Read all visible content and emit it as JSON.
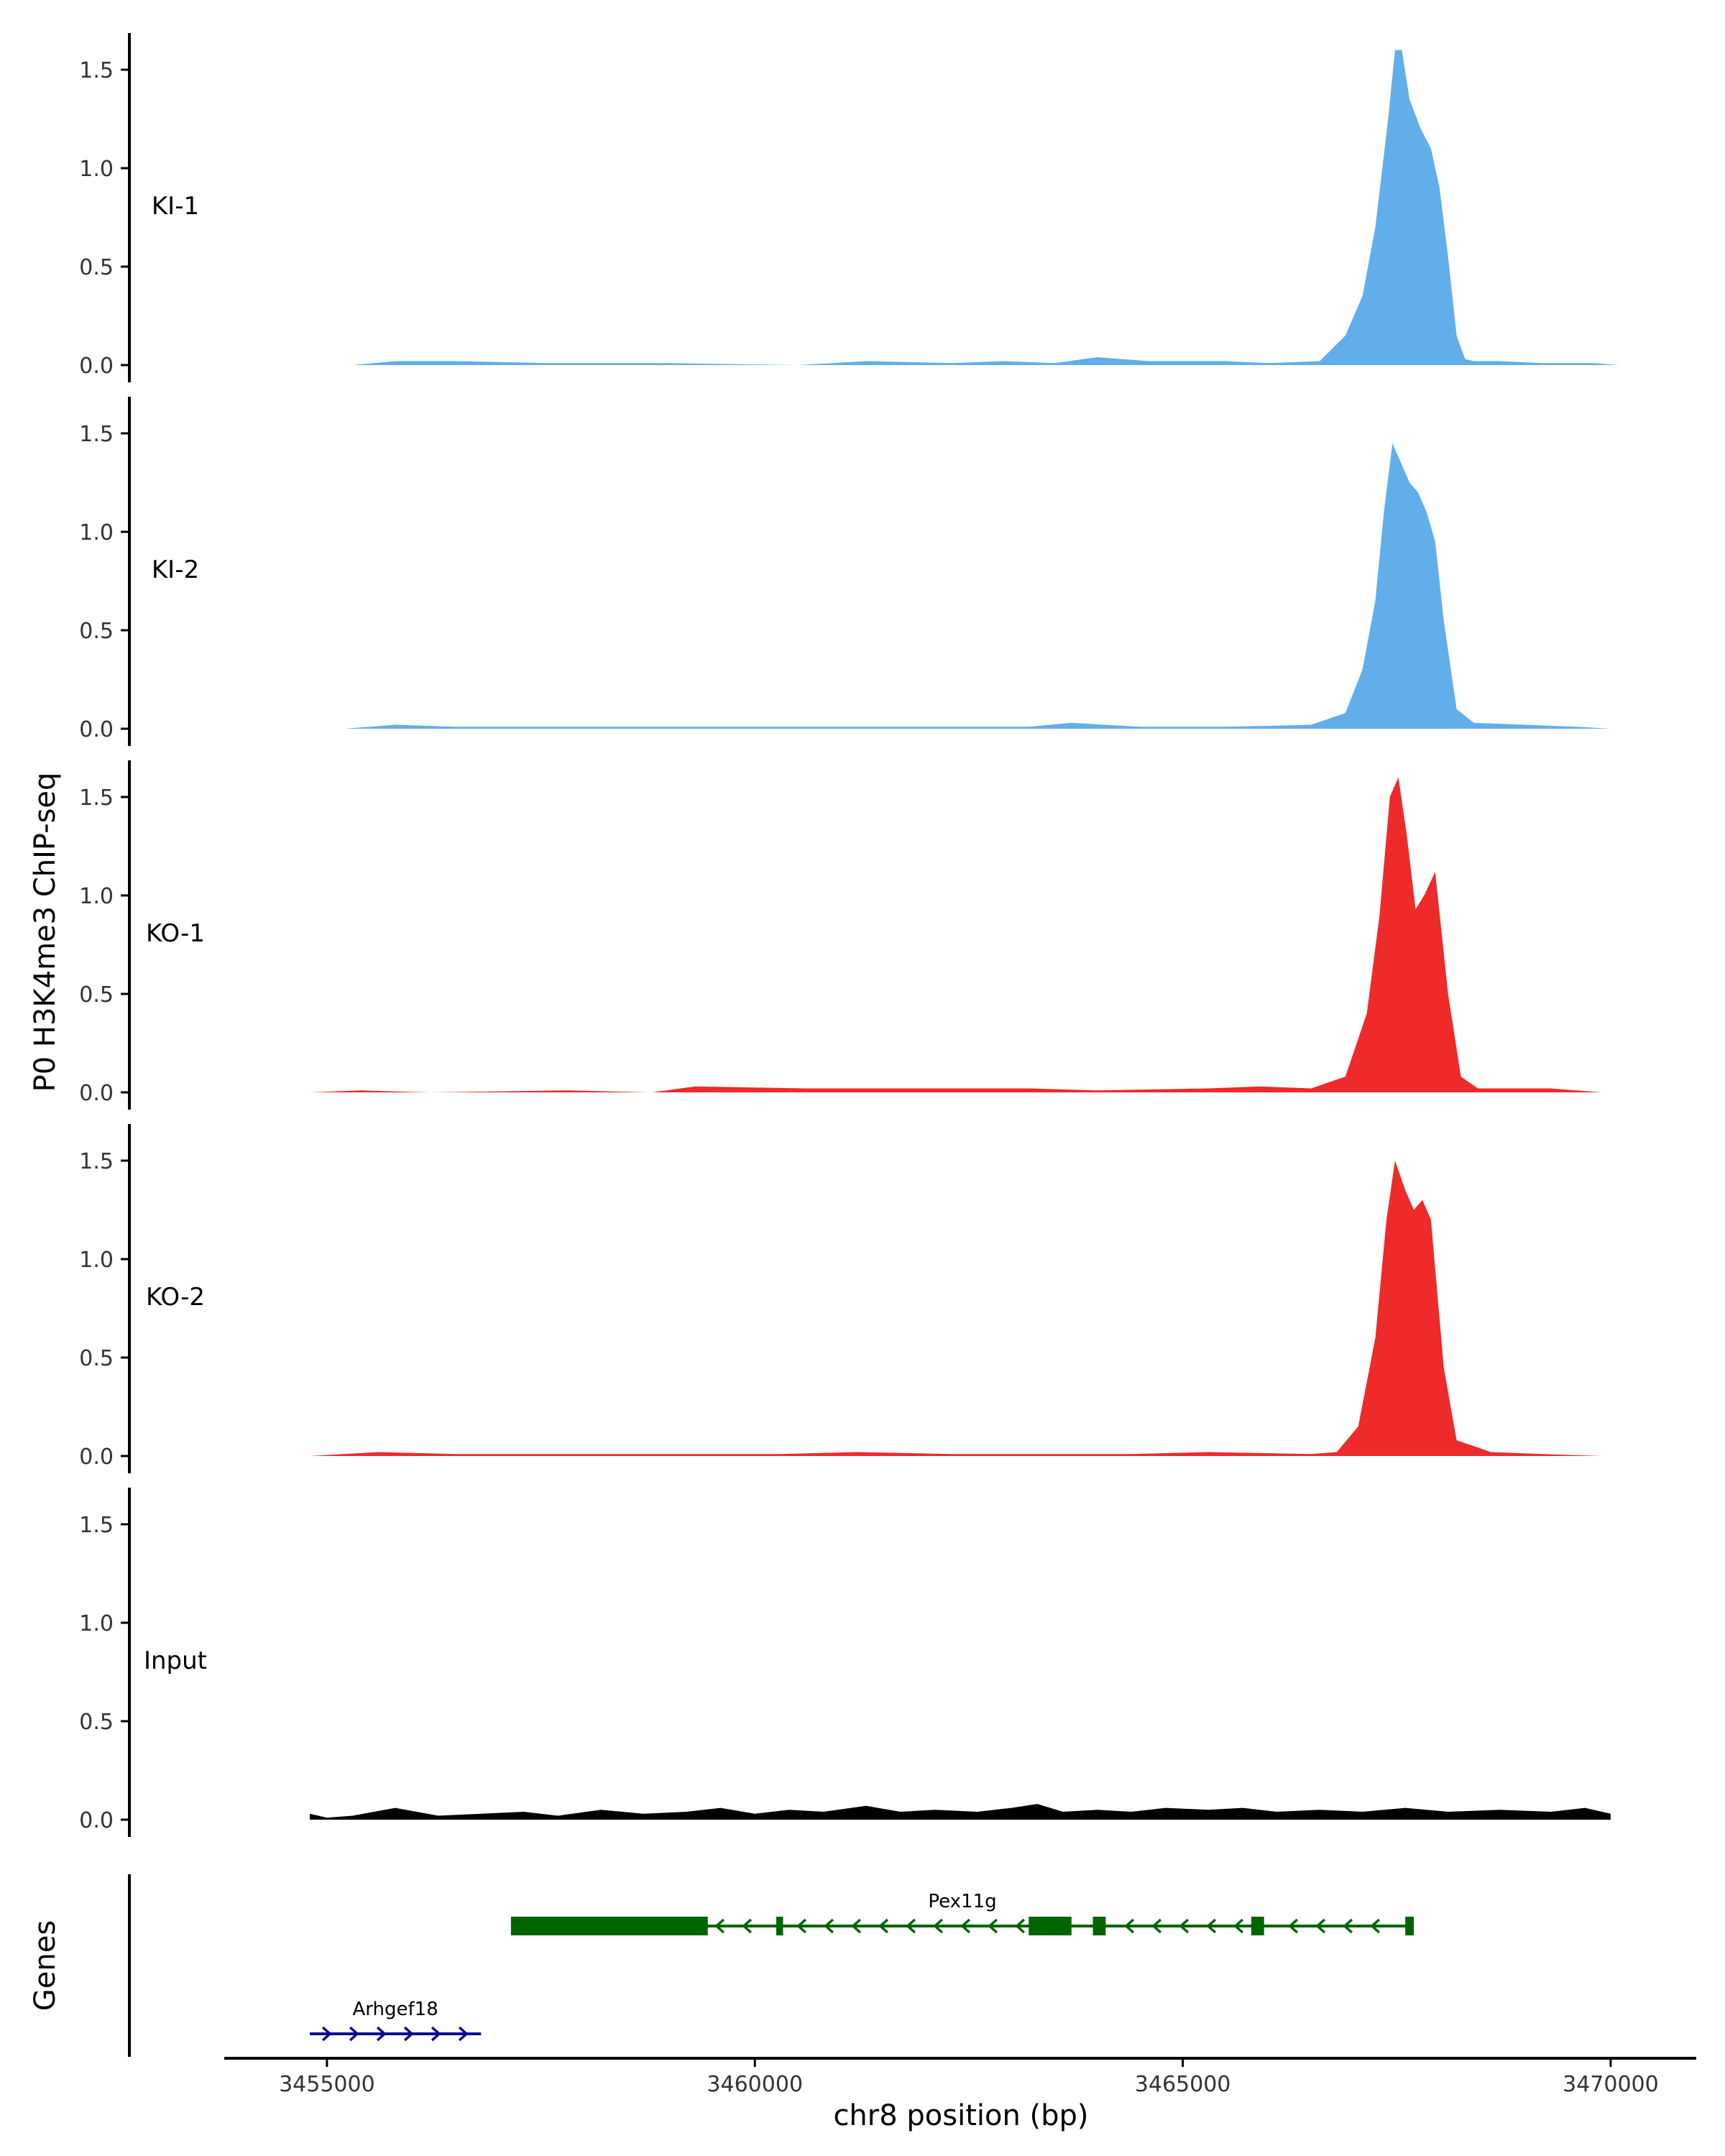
{
  "chart_data": {
    "type": "area",
    "ylabel": "P0 H3K4me3 ChIP-seq",
    "xlabel": "chr8 position (bp)",
    "ylim": [
      0,
      1.65
    ],
    "xlim": [
      3453800,
      3471000
    ],
    "grid": false,
    "y_ticks": [
      {
        "value": 0.0,
        "label": "0.0"
      },
      {
        "value": 0.5,
        "label": "0.5"
      },
      {
        "value": 1.0,
        "label": "1.0"
      },
      {
        "value": 1.5,
        "label": "1.5"
      }
    ],
    "x_ticks": [
      {
        "value": 3455000,
        "label": "3455000"
      },
      {
        "value": 3460000,
        "label": "3460000"
      },
      {
        "value": 3465000,
        "label": "3465000"
      },
      {
        "value": 3470000,
        "label": "3470000"
      }
    ],
    "tracks": [
      {
        "name": "KI-1",
        "color": "#62AEEB",
        "x": [
          3454800,
          3455300,
          3455800,
          3456500,
          3457600,
          3458200,
          3459000,
          3460500,
          3461300,
          3462300,
          3462900,
          3463500,
          3464000,
          3464600,
          3465500,
          3466000,
          3466600,
          3466900,
          3467100,
          3467250,
          3467400,
          3467480,
          3467560,
          3467650,
          3467780,
          3467900,
          3468000,
          3468100,
          3468200,
          3468300,
          3468400,
          3468700,
          3469200,
          3469800,
          3470100
        ],
        "values": [
          0.0,
          0.0,
          0.02,
          0.02,
          0.01,
          0.01,
          0.01,
          0.0,
          0.02,
          0.01,
          0.02,
          0.01,
          0.04,
          0.02,
          0.02,
          0.01,
          0.02,
          0.15,
          0.35,
          0.7,
          1.25,
          1.6,
          1.6,
          1.35,
          1.2,
          1.1,
          0.9,
          0.55,
          0.15,
          0.03,
          0.02,
          0.02,
          0.01,
          0.01,
          0.0
        ]
      },
      {
        "name": "KI-2",
        "color": "#62AEEB",
        "x": [
          3455200,
          3455800,
          3456500,
          3457300,
          3458200,
          3459600,
          3460500,
          3461300,
          3462300,
          3463200,
          3463700,
          3464500,
          3465500,
          3466500,
          3466900,
          3467100,
          3467250,
          3467350,
          3467450,
          3467550,
          3467650,
          3467750,
          3467850,
          3467950,
          3468050,
          3468200,
          3468400,
          3469000,
          3469600,
          3470000
        ],
        "values": [
          0.0,
          0.02,
          0.01,
          0.01,
          0.01,
          0.01,
          0.01,
          0.01,
          0.01,
          0.01,
          0.03,
          0.01,
          0.01,
          0.02,
          0.08,
          0.3,
          0.65,
          1.1,
          1.45,
          1.35,
          1.25,
          1.2,
          1.1,
          0.95,
          0.55,
          0.1,
          0.03,
          0.02,
          0.01,
          0.0
        ]
      },
      {
        "name": "KO-1",
        "color": "#EE2A2A",
        "x": [
          3454800,
          3455400,
          3456200,
          3457800,
          3458800,
          3459300,
          3460600,
          3461600,
          3462300,
          3463200,
          3464000,
          3465300,
          3465900,
          3466500,
          3466900,
          3467150,
          3467300,
          3467420,
          3467520,
          3467620,
          3467720,
          3467820,
          3467950,
          3468100,
          3468250,
          3468450,
          3469300,
          3469900
        ],
        "values": [
          0.0,
          0.01,
          0.0,
          0.01,
          0.0,
          0.03,
          0.02,
          0.02,
          0.02,
          0.02,
          0.01,
          0.02,
          0.03,
          0.02,
          0.08,
          0.4,
          0.9,
          1.5,
          1.6,
          1.3,
          0.93,
          1.0,
          1.12,
          0.5,
          0.08,
          0.02,
          0.02,
          0.0
        ]
      },
      {
        "name": "KO-2",
        "color": "#EE2A2A",
        "x": [
          3454800,
          3455600,
          3456500,
          3457800,
          3459200,
          3460300,
          3461200,
          3462300,
          3463200,
          3464400,
          3465300,
          3466500,
          3466800,
          3467050,
          3467250,
          3467380,
          3467480,
          3467600,
          3467700,
          3467800,
          3467900,
          3468050,
          3468200,
          3468400,
          3468600,
          3469200,
          3469900
        ],
        "values": [
          0.0,
          0.02,
          0.01,
          0.01,
          0.01,
          0.01,
          0.02,
          0.01,
          0.01,
          0.01,
          0.02,
          0.01,
          0.02,
          0.15,
          0.6,
          1.2,
          1.5,
          1.35,
          1.25,
          1.3,
          1.2,
          0.45,
          0.08,
          0.05,
          0.02,
          0.01,
          0.0
        ]
      },
      {
        "name": "Input",
        "color": "#000000",
        "x": [
          3454800,
          3455000,
          3455300,
          3455800,
          3456300,
          3456800,
          3457300,
          3457700,
          3458200,
          3458700,
          3459200,
          3459600,
          3460000,
          3460400,
          3460800,
          3461300,
          3461700,
          3462100,
          3462600,
          3463000,
          3463300,
          3463600,
          3464000,
          3464400,
          3464800,
          3465300,
          3465700,
          3466100,
          3466600,
          3467100,
          3467600,
          3468100,
          3468700,
          3469300,
          3469700,
          3470000
        ],
        "values": [
          0.03,
          0.01,
          0.02,
          0.06,
          0.02,
          0.03,
          0.04,
          0.02,
          0.05,
          0.03,
          0.04,
          0.06,
          0.03,
          0.05,
          0.04,
          0.07,
          0.04,
          0.05,
          0.04,
          0.06,
          0.08,
          0.04,
          0.05,
          0.04,
          0.06,
          0.05,
          0.06,
          0.04,
          0.05,
          0.04,
          0.06,
          0.04,
          0.05,
          0.04,
          0.06,
          0.03
        ]
      }
    ],
    "genes_track": {
      "label": "Genes",
      "genes": [
        {
          "name": "Arhgef18",
          "color": "#0A0A8A",
          "strand": "+",
          "start": 3454800,
          "end": 3456800,
          "exons": [],
          "row": 2
        },
        {
          "name": "Pex11g",
          "color": "#006400",
          "strand": "-",
          "start": 3457150,
          "end": 3467700,
          "exons": [
            [
              3457150,
              3459450
            ],
            [
              3460250,
              3460330
            ],
            [
              3463200,
              3463700
            ],
            [
              3463950,
              3464100
            ],
            [
              3465800,
              3465950
            ],
            [
              3467600,
              3467700
            ]
          ],
          "row": 1
        }
      ]
    }
  }
}
